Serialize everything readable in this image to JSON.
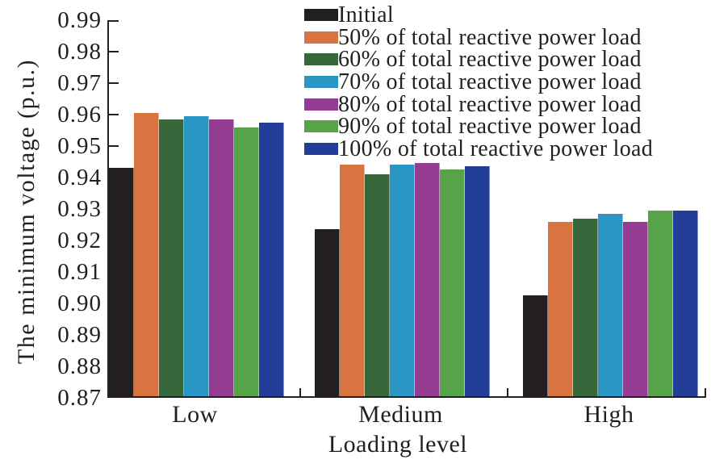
{
  "chart_data": {
    "type": "bar",
    "title": "",
    "xlabel": "Loading level",
    "ylabel": "The minimum voltage (p.u.)",
    "categories": [
      "Low",
      "Medium",
      "High"
    ],
    "series": [
      {
        "name": "Initial",
        "color": "#231f20",
        "values": [
          0.943,
          0.9235,
          0.9025
        ]
      },
      {
        "name": "50% of total reactive power load",
        "color": "#d97341",
        "values": [
          0.9605,
          0.944,
          0.926
        ]
      },
      {
        "name": "60% of total reactive power load",
        "color": "#37683c",
        "values": [
          0.9585,
          0.941,
          0.927
        ]
      },
      {
        "name": "70% of total reactive power load",
        "color": "#2996c4",
        "values": [
          0.9595,
          0.944,
          0.9285
        ]
      },
      {
        "name": "80% of total reactive power load",
        "color": "#943b92",
        "values": [
          0.9585,
          0.9445,
          0.926
        ]
      },
      {
        "name": "90% of total reactive power load",
        "color": "#57a349",
        "values": [
          0.956,
          0.9425,
          0.9295
        ]
      },
      {
        "name": "100% of total reactive power load",
        "color": "#223e99",
        "values": [
          0.9575,
          0.9435,
          0.9295
        ]
      }
    ],
    "ylim": [
      0.87,
      0.99
    ],
    "ytick_step": 0.01,
    "ytick_decimals": 2,
    "grid": false,
    "legend_position": "top-right",
    "axis_color": "#231f20"
  }
}
